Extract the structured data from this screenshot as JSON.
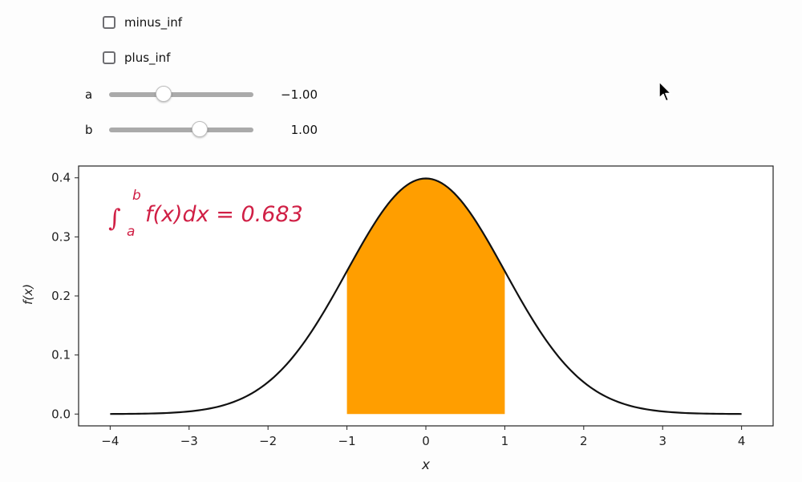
{
  "controls": {
    "checkboxes": [
      {
        "label": "minus_inf",
        "checked": false
      },
      {
        "label": "plus_inf",
        "checked": false
      }
    ],
    "sliders": [
      {
        "label": "a",
        "value": -1.0,
        "value_text": "−1.00",
        "min": -4,
        "max": 4
      },
      {
        "label": "b",
        "value": 1.0,
        "value_text": "1.00",
        "min": -4,
        "max": 4
      }
    ]
  },
  "chart_data": {
    "type": "area",
    "function": "standard normal probability density f(x)",
    "x": [
      -4,
      -3.5,
      -3,
      -2.5,
      -2,
      -1.5,
      -1,
      -0.5,
      0,
      0.5,
      1,
      1.5,
      2,
      2.5,
      3,
      3.5,
      4
    ],
    "y": [
      0.0001,
      0.0009,
      0.0044,
      0.0175,
      0.054,
      0.1295,
      0.242,
      0.3521,
      0.3989,
      0.3521,
      0.242,
      0.1295,
      0.054,
      0.0175,
      0.0044,
      0.0009,
      0.0001
    ],
    "shaded_interval": [
      -1,
      1
    ],
    "shaded_area": 0.683,
    "annotation": {
      "prefix": "∫",
      "lower": "a",
      "upper": "b",
      "body": "f(x)dx = 0.683"
    },
    "xlabel": "x",
    "ylabel": "f(x)",
    "xlim": [
      -4.4,
      4.4
    ],
    "ylim": [
      -0.02,
      0.42
    ],
    "xticks": [
      -4,
      -3,
      -2,
      -1,
      0,
      1,
      2,
      3,
      4
    ],
    "xtick_labels": [
      "−4",
      "−3",
      "−2",
      "−1",
      "0",
      "1",
      "2",
      "3",
      "4"
    ],
    "yticks": [
      0.0,
      0.1,
      0.2,
      0.3,
      0.4
    ],
    "ytick_labels": [
      "0.0",
      "0.1",
      "0.2",
      "0.3",
      "0.4"
    ],
    "grid": false,
    "colors": {
      "curve": "#111111",
      "fill": "#ff9e00",
      "annotation": "#d01f45"
    }
  }
}
